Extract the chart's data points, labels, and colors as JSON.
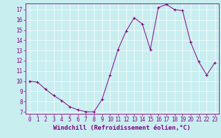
{
  "x": [
    0,
    1,
    2,
    3,
    4,
    5,
    6,
    7,
    8,
    9,
    10,
    11,
    12,
    13,
    14,
    15,
    16,
    17,
    18,
    19,
    20,
    21,
    22,
    23
  ],
  "y": [
    10.0,
    9.9,
    9.2,
    8.6,
    8.1,
    7.5,
    7.2,
    7.0,
    7.0,
    8.2,
    10.6,
    13.1,
    14.9,
    16.2,
    15.6,
    13.1,
    17.2,
    17.5,
    17.0,
    16.9,
    13.8,
    11.9,
    10.6,
    11.8
  ],
  "line_color": "#800080",
  "marker": "+",
  "marker_size": 3,
  "bg_color": "#c8eef0",
  "grid_color": "#ffffff",
  "xlabel": "Windchill (Refroidissement éolien,°C)",
  "xlim": [
    -0.5,
    23.5
  ],
  "ylim": [
    6.8,
    17.6
  ],
  "yticks": [
    7,
    8,
    9,
    10,
    11,
    12,
    13,
    14,
    15,
    16,
    17
  ],
  "xticks": [
    0,
    1,
    2,
    3,
    4,
    5,
    6,
    7,
    8,
    9,
    10,
    11,
    12,
    13,
    14,
    15,
    16,
    17,
    18,
    19,
    20,
    21,
    22,
    23
  ],
  "tick_fontsize": 5.5,
  "label_fontsize": 6.5
}
